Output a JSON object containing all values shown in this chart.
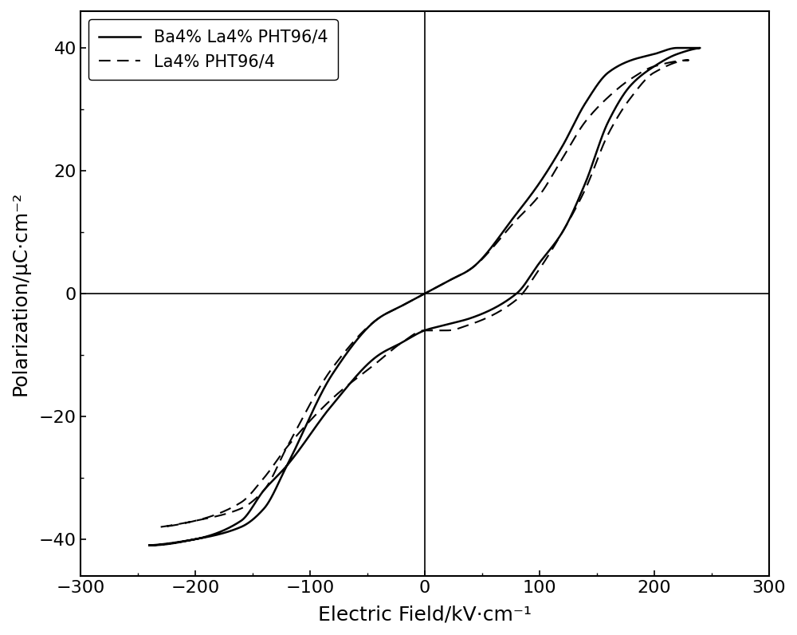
{
  "title": "",
  "xlabel": "Electric Field/kV·cm⁻¹",
  "ylabel": "Polarization/μC·cm⁻²",
  "xlim": [
    -300,
    300
  ],
  "ylim": [
    -46,
    46
  ],
  "xticks": [
    -300,
    -200,
    -100,
    0,
    100,
    200,
    300
  ],
  "yticks": [
    -40,
    -20,
    0,
    20,
    40
  ],
  "legend": [
    "Ba4% La4% PHT96/4",
    "La4% PHT96/4"
  ],
  "line_color": "#000000",
  "background_color": "#ffffff",
  "solid_linewidth": 1.8,
  "dashed_linewidth": 1.5,
  "font_size": 18
}
